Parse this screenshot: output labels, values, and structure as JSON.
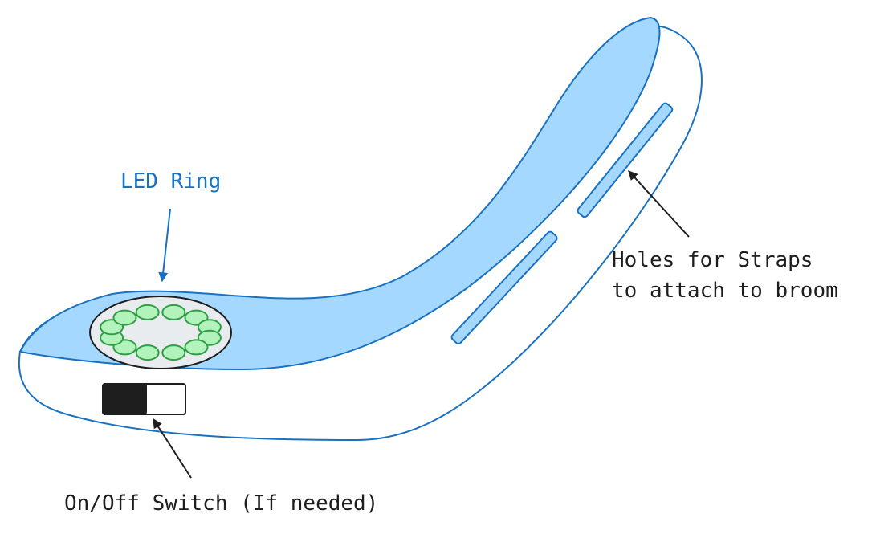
{
  "labels": {
    "led_ring": "LED Ring",
    "holes_line1": "Holes for Straps",
    "holes_line2": "to attach to broom",
    "switch": "On/Off Switch (If needed)"
  },
  "colors": {
    "body_outline": "#1971c2",
    "body_fill": "#ffffff",
    "top_fill": "#a5d8ff",
    "led_fill": "#b2f2bb",
    "led_outline": "#2f9e44",
    "ring_fill": "#e9ecef",
    "switch_dark": "#1e1e1e",
    "label_blue": "#1971c2",
    "label_dark": "#1e1e1e"
  },
  "led_ring": {
    "led_count": 12
  }
}
